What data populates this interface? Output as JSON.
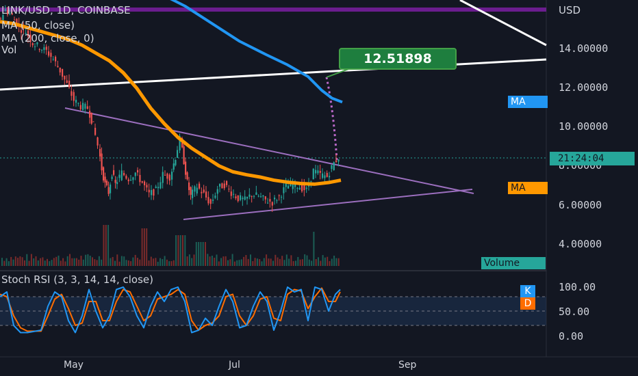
{
  "legend": {
    "symbol": "LINK/USD, 1D, COINBASE",
    "ma50": "MA (50, close)",
    "ma200": "MA (200, close, 0)",
    "vol": "Vol"
  },
  "rsi_legend": "Stoch RSI (3, 3, 14, 14, close)",
  "price_axis": {
    "currency": "USD",
    "labels": [
      "14.00000",
      "12.00000",
      "10.00000",
      "8.00000",
      "6.00000",
      "4.00000"
    ],
    "current_price_tag": "21:24:04"
  },
  "rsi_axis": {
    "labels": [
      "100.00",
      "50.00",
      "0.00"
    ]
  },
  "time_axis": {
    "labels": [
      "May",
      "Jul",
      "Sep"
    ]
  },
  "badges": {
    "ma_blue": "MA",
    "ma_orange": "MA",
    "volume": "Volume",
    "k": "K",
    "d": "D"
  },
  "callout": {
    "value": "12.51898"
  },
  "colors": {
    "background": "#131722",
    "up": "#26a69a",
    "down": "#ef5350",
    "ma50": "#ff9800",
    "ma200": "#2196f3",
    "triangle": "#9c6fbf",
    "trendline": "#ffffff",
    "resistance": "#7b1fa2",
    "stoch_k": "#2196f3",
    "stoch_d": "#ff6d00"
  },
  "chart_data": [
    {
      "type": "line",
      "title": "LINK/USD, 1D, COINBASE",
      "ylabel": "USD",
      "ylim": [
        3.0,
        16.0
      ],
      "x_labels": [
        "May",
        "Jul",
        "Sep"
      ],
      "series": [
        {
          "name": "MA (50, close)",
          "points": [
            [
              0,
              15.3
            ],
            [
              20,
              15.2
            ],
            [
              40,
              15.0
            ],
            [
              60,
              14.8
            ],
            [
              80,
              14.6
            ],
            [
              100,
              14.4
            ],
            [
              120,
              14.1
            ],
            [
              140,
              13.7
            ],
            [
              160,
              13.3
            ],
            [
              180,
              12.7
            ],
            [
              200,
              11.9
            ],
            [
              220,
              10.9
            ],
            [
              240,
              10.1
            ],
            [
              260,
              9.4
            ],
            [
              280,
              8.85
            ],
            [
              300,
              8.4
            ],
            [
              320,
              7.95
            ],
            [
              340,
              7.65
            ],
            [
              360,
              7.5
            ],
            [
              380,
              7.38
            ],
            [
              400,
              7.22
            ],
            [
              420,
              7.12
            ],
            [
              440,
              7.05
            ],
            [
              460,
              7.02
            ],
            [
              480,
              7.1
            ],
            [
              498,
              7.22
            ]
          ]
        },
        {
          "name": "MA (200, close, 0)",
          "points": [
            [
              230,
              16.8
            ],
            [
              270,
              16.1
            ],
            [
              310,
              15.2
            ],
            [
              350,
              14.3
            ],
            [
              390,
              13.6
            ],
            [
              420,
              13.1
            ],
            [
              450,
              12.5
            ],
            [
              470,
              11.8
            ],
            [
              485,
              11.4
            ],
            [
              500,
              11.2
            ]
          ]
        },
        {
          "name": "close",
          "points": [
            [
              0,
              15.3
            ],
            [
              10,
              15.9
            ],
            [
              20,
              15.6
            ],
            [
              30,
              15.0
            ],
            [
              40,
              14.8
            ],
            [
              50,
              14.2
            ],
            [
              60,
              14.0
            ],
            [
              70,
              13.8
            ],
            [
              80,
              13.4
            ],
            [
              90,
              12.8
            ],
            [
              100,
              12.1
            ],
            [
              110,
              11.3
            ],
            [
              120,
              11.0
            ],
            [
              130,
              10.9
            ],
            [
              138,
              10.0
            ],
            [
              145,
              9.0
            ],
            [
              150,
              7.8
            ],
            [
              155,
              7.0
            ],
            [
              160,
              6.6
            ],
            [
              165,
              7.6
            ],
            [
              170,
              7.0
            ],
            [
              180,
              7.6
            ],
            [
              190,
              7.3
            ],
            [
              200,
              7.6
            ],
            [
              210,
              7.1
            ],
            [
              220,
              6.5
            ],
            [
              230,
              6.7
            ],
            [
              240,
              7.5
            ],
            [
              250,
              7.4
            ],
            [
              258,
              8.4
            ],
            [
              265,
              9.3
            ],
            [
              270,
              8.2
            ],
            [
              275,
              7.1
            ],
            [
              280,
              6.4
            ],
            [
              290,
              6.9
            ],
            [
              300,
              6.5
            ],
            [
              310,
              6.0
            ],
            [
              320,
              6.8
            ],
            [
              330,
              7.0
            ],
            [
              340,
              6.6
            ],
            [
              350,
              6.3
            ],
            [
              360,
              6.2
            ],
            [
              370,
              6.5
            ],
            [
              380,
              6.4
            ],
            [
              390,
              6.2
            ],
            [
              400,
              6.1
            ],
            [
              410,
              6.4
            ],
            [
              420,
              6.9
            ],
            [
              430,
              7.0
            ],
            [
              440,
              6.9
            ],
            [
              450,
              6.7
            ],
            [
              460,
              7.7
            ],
            [
              470,
              7.5
            ],
            [
              480,
              7.4
            ],
            [
              490,
              8.1
            ],
            [
              497,
              8.4
            ]
          ]
        }
      ],
      "annotations": {
        "price_target": 12.51898
      }
    },
    {
      "type": "line",
      "title": "Stoch RSI (3, 3, 14, 14, close)",
      "ylim": [
        0,
        100
      ],
      "series": [
        {
          "name": "K",
          "points": [
            [
              0,
              80
            ],
            [
              10,
              90
            ],
            [
              20,
              20
            ],
            [
              30,
              5
            ],
            [
              40,
              5
            ],
            [
              60,
              10
            ],
            [
              70,
              60
            ],
            [
              80,
              90
            ],
            [
              90,
              80
            ],
            [
              100,
              30
            ],
            [
              110,
              5
            ],
            [
              120,
              40
            ],
            [
              130,
              95
            ],
            [
              140,
              50
            ],
            [
              150,
              15
            ],
            [
              160,
              40
            ],
            [
              170,
              95
            ],
            [
              180,
              100
            ],
            [
              190,
              80
            ],
            [
              200,
              40
            ],
            [
              210,
              15
            ],
            [
              220,
              60
            ],
            [
              230,
              90
            ],
            [
              240,
              70
            ],
            [
              250,
              95
            ],
            [
              260,
              100
            ],
            [
              270,
              70
            ],
            [
              280,
              5
            ],
            [
              290,
              10
            ],
            [
              300,
              35
            ],
            [
              310,
              20
            ],
            [
              320,
              60
            ],
            [
              330,
              95
            ],
            [
              340,
              70
            ],
            [
              350,
              15
            ],
            [
              360,
              20
            ],
            [
              370,
              60
            ],
            [
              380,
              90
            ],
            [
              390,
              70
            ],
            [
              400,
              10
            ],
            [
              410,
              50
            ],
            [
              420,
              100
            ],
            [
              430,
              90
            ],
            [
              440,
              95
            ],
            [
              450,
              30
            ],
            [
              460,
              100
            ],
            [
              470,
              95
            ],
            [
              480,
              50
            ],
            [
              490,
              85
            ],
            [
              497,
              95
            ]
          ]
        },
        {
          "name": "D",
          "points": [
            [
              0,
              85
            ],
            [
              10,
              80
            ],
            [
              20,
              40
            ],
            [
              30,
              15
            ],
            [
              40,
              8
            ],
            [
              60,
              8
            ],
            [
              70,
              40
            ],
            [
              80,
              75
            ],
            [
              90,
              85
            ],
            [
              100,
              55
            ],
            [
              110,
              20
            ],
            [
              120,
              25
            ],
            [
              130,
              70
            ],
            [
              140,
              70
            ],
            [
              150,
              30
            ],
            [
              160,
              30
            ],
            [
              170,
              70
            ],
            [
              180,
              95
            ],
            [
              190,
              90
            ],
            [
              200,
              60
            ],
            [
              210,
              30
            ],
            [
              220,
              40
            ],
            [
              230,
              75
            ],
            [
              240,
              80
            ],
            [
              250,
              85
            ],
            [
              260,
              95
            ],
            [
              270,
              85
            ],
            [
              280,
              30
            ],
            [
              290,
              10
            ],
            [
              300,
              20
            ],
            [
              310,
              25
            ],
            [
              320,
              40
            ],
            [
              330,
              80
            ],
            [
              340,
              85
            ],
            [
              350,
              40
            ],
            [
              360,
              20
            ],
            [
              370,
              40
            ],
            [
              380,
              75
            ],
            [
              390,
              80
            ],
            [
              400,
              35
            ],
            [
              410,
              30
            ],
            [
              420,
              85
            ],
            [
              430,
              95
            ],
            [
              440,
              92
            ],
            [
              450,
              55
            ],
            [
              460,
              80
            ],
            [
              470,
              98
            ],
            [
              480,
              70
            ],
            [
              490,
              70
            ],
            [
              497,
              90
            ]
          ]
        }
      ]
    }
  ]
}
